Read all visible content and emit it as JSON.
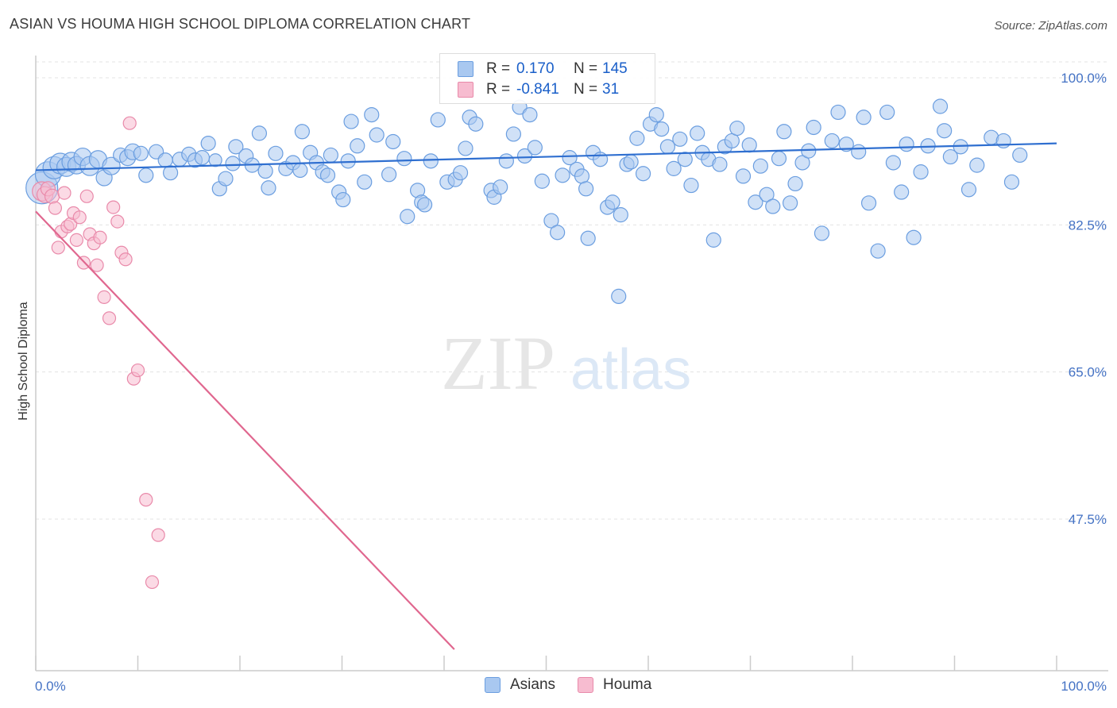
{
  "header": {
    "title": "ASIAN VS HOUMA HIGH SCHOOL DIPLOMA CORRELATION CHART",
    "source": "Source: ZipAtlas.com"
  },
  "watermark": {
    "zip": "ZIP",
    "atlas": "atlas"
  },
  "legend": {
    "rows": [
      {
        "r_label": "R =",
        "r_value": "0.170",
        "n_label": "N =",
        "n_value": "145",
        "color": "#a9c8f0",
        "border": "#6b9ee0"
      },
      {
        "r_label": "R =",
        "r_value": "-0.841",
        "n_label": "N =",
        "n_value": "31",
        "color": "#f7bcd0",
        "border": "#e98aaa"
      }
    ]
  },
  "bottom_legend": {
    "items": [
      {
        "label": "Asians",
        "color": "#a9c8f0",
        "border": "#6b9ee0"
      },
      {
        "label": "Houma",
        "color": "#f7bcd0",
        "border": "#e98aaa"
      }
    ]
  },
  "chart_data": {
    "type": "scatter",
    "title": "ASIAN VS HOUMA HIGH SCHOOL DIPLOMA CORRELATION CHART",
    "xlabel": "",
    "ylabel": "High School Diploma",
    "xlim": [
      0,
      100
    ],
    "ylim": [
      32,
      102
    ],
    "x_ticks": [
      "0.0%",
      "100.0%"
    ],
    "y_ticks": [
      {
        "value": 100.0,
        "label": "100.0%"
      },
      {
        "value": 82.5,
        "label": "82.5%"
      },
      {
        "value": 65.0,
        "label": "65.0%"
      },
      {
        "value": 47.5,
        "label": "47.5%"
      }
    ],
    "grid": true,
    "legend_position": "top-center",
    "series": [
      {
        "name": "Asians",
        "color": "#a9c8f0",
        "stroke": "#6b9ee0",
        "trend": {
          "x": [
            0,
            100
          ],
          "y": [
            89.0,
            92.2
          ],
          "color": "#2f6fd0"
        },
        "points": [
          [
            0.6,
            86.9,
            20
          ],
          [
            1.2,
            88.5,
            16
          ],
          [
            1.8,
            89.3,
            14
          ],
          [
            2.4,
            89.8,
            13
          ],
          [
            3.0,
            89.4,
            12
          ],
          [
            3.5,
            90.0,
            12
          ],
          [
            4.0,
            89.6,
            11
          ],
          [
            4.6,
            90.6,
            11
          ],
          [
            5.3,
            89.5,
            12
          ],
          [
            6.1,
            90.3,
            11
          ],
          [
            6.7,
            88.1,
            10
          ],
          [
            7.4,
            89.5,
            11
          ],
          [
            8.3,
            90.8,
            9
          ],
          [
            9.0,
            90.5,
            10
          ],
          [
            9.5,
            91.2,
            10
          ],
          [
            10.3,
            91.0,
            9
          ],
          [
            10.8,
            88.4,
            9
          ],
          [
            11.8,
            91.2,
            9
          ],
          [
            12.7,
            90.2,
            9
          ],
          [
            13.2,
            88.7,
            9
          ],
          [
            14.1,
            90.3,
            9
          ],
          [
            15.0,
            90.9,
            9
          ],
          [
            15.6,
            90.2,
            9
          ],
          [
            16.3,
            90.5,
            9
          ],
          [
            16.9,
            92.2,
            9
          ],
          [
            17.6,
            90.2,
            8
          ],
          [
            18.0,
            86.8,
            9
          ],
          [
            18.6,
            88.0,
            9
          ],
          [
            19.3,
            89.8,
            9
          ],
          [
            19.6,
            91.8,
            9
          ],
          [
            20.6,
            90.7,
            9
          ],
          [
            21.2,
            89.6,
            9
          ],
          [
            21.9,
            93.4,
            9
          ],
          [
            22.5,
            88.9,
            9
          ],
          [
            22.8,
            86.9,
            9
          ],
          [
            23.5,
            91.0,
            9
          ],
          [
            24.5,
            89.2,
            9
          ],
          [
            25.2,
            89.9,
            9
          ],
          [
            25.9,
            89.0,
            9
          ],
          [
            26.1,
            93.6,
            9
          ],
          [
            26.9,
            91.1,
            9
          ],
          [
            27.5,
            89.9,
            9
          ],
          [
            28.1,
            88.8,
            9
          ],
          [
            28.6,
            88.4,
            9
          ],
          [
            28.9,
            90.8,
            9
          ],
          [
            29.7,
            86.4,
            9
          ],
          [
            30.1,
            85.5,
            9
          ],
          [
            30.6,
            90.1,
            9
          ],
          [
            30.9,
            94.8,
            9
          ],
          [
            31.5,
            91.9,
            9
          ],
          [
            32.2,
            87.6,
            9
          ],
          [
            32.9,
            95.6,
            9
          ],
          [
            33.4,
            93.2,
            9
          ],
          [
            34.6,
            88.5,
            9
          ],
          [
            35.0,
            92.4,
            9
          ],
          [
            36.1,
            90.4,
            9
          ],
          [
            36.4,
            83.5,
            9
          ],
          [
            37.4,
            86.6,
            9
          ],
          [
            37.8,
            85.2,
            9
          ],
          [
            38.1,
            84.9,
            9
          ],
          [
            38.7,
            90.1,
            9
          ],
          [
            39.4,
            95.0,
            9
          ],
          [
            40.3,
            87.6,
            9
          ],
          [
            41.1,
            87.9,
            9
          ],
          [
            41.6,
            88.7,
            9
          ],
          [
            42.1,
            91.6,
            9
          ],
          [
            42.5,
            95.3,
            9
          ],
          [
            43.1,
            94.5,
            9
          ],
          [
            44.6,
            86.6,
            9
          ],
          [
            44.9,
            85.8,
            9
          ],
          [
            45.5,
            87.0,
            9
          ],
          [
            46.1,
            90.1,
            9
          ],
          [
            46.8,
            93.3,
            9
          ],
          [
            47.4,
            96.5,
            9
          ],
          [
            47.9,
            90.7,
            9
          ],
          [
            48.4,
            95.6,
            9
          ],
          [
            48.9,
            91.7,
            9
          ],
          [
            49.6,
            87.7,
            9
          ],
          [
            50.5,
            83.0,
            9
          ],
          [
            51.1,
            81.6,
            9
          ],
          [
            51.6,
            88.4,
            9
          ],
          [
            52.3,
            90.5,
            9
          ],
          [
            53.0,
            89.1,
            9
          ],
          [
            53.5,
            88.3,
            9
          ],
          [
            53.9,
            86.8,
            9
          ],
          [
            54.1,
            80.9,
            9
          ],
          [
            54.6,
            91.1,
            9
          ],
          [
            55.3,
            90.3,
            9
          ],
          [
            56.0,
            84.6,
            9
          ],
          [
            56.5,
            85.2,
            9
          ],
          [
            57.1,
            74.0,
            9
          ],
          [
            57.3,
            83.7,
            9
          ],
          [
            57.9,
            89.7,
            9
          ],
          [
            58.3,
            90.0,
            9
          ],
          [
            58.9,
            92.8,
            9
          ],
          [
            59.5,
            88.6,
            9
          ],
          [
            60.2,
            94.5,
            9
          ],
          [
            60.8,
            95.6,
            9
          ],
          [
            61.3,
            93.9,
            9
          ],
          [
            61.9,
            91.8,
            9
          ],
          [
            62.5,
            89.2,
            9
          ],
          [
            63.1,
            92.7,
            9
          ],
          [
            63.6,
            90.3,
            9
          ],
          [
            64.2,
            87.2,
            9
          ],
          [
            64.8,
            93.4,
            9
          ],
          [
            65.3,
            91.1,
            9
          ],
          [
            65.9,
            90.3,
            9
          ],
          [
            66.4,
            80.7,
            9
          ],
          [
            67.0,
            89.7,
            9
          ],
          [
            67.5,
            91.8,
            9
          ],
          [
            68.2,
            92.5,
            9
          ],
          [
            68.7,
            94.0,
            9
          ],
          [
            69.3,
            88.3,
            9
          ],
          [
            69.9,
            92.0,
            9
          ],
          [
            70.5,
            85.2,
            9
          ],
          [
            71.0,
            89.5,
            9
          ],
          [
            71.6,
            86.1,
            9
          ],
          [
            72.2,
            84.7,
            9
          ],
          [
            72.8,
            90.4,
            9
          ],
          [
            73.3,
            93.6,
            9
          ],
          [
            73.9,
            85.1,
            9
          ],
          [
            74.4,
            87.4,
            9
          ],
          [
            75.1,
            89.9,
            9
          ],
          [
            75.7,
            91.3,
            9
          ],
          [
            76.2,
            94.1,
            9
          ],
          [
            77.0,
            81.5,
            9
          ],
          [
            78.0,
            92.5,
            9
          ],
          [
            78.6,
            95.9,
            9
          ],
          [
            79.4,
            92.1,
            9
          ],
          [
            80.6,
            91.2,
            9
          ],
          [
            81.1,
            95.3,
            9
          ],
          [
            81.6,
            85.1,
            9
          ],
          [
            82.5,
            79.4,
            9
          ],
          [
            83.4,
            95.9,
            9
          ],
          [
            84.0,
            89.9,
            9
          ],
          [
            84.8,
            86.4,
            9
          ],
          [
            85.3,
            92.1,
            9
          ],
          [
            86.0,
            81.0,
            9
          ],
          [
            86.7,
            88.8,
            9
          ],
          [
            87.4,
            91.9,
            9
          ],
          [
            88.6,
            96.6,
            9
          ],
          [
            89.0,
            93.7,
            9
          ],
          [
            89.6,
            90.6,
            9
          ],
          [
            90.6,
            91.8,
            9
          ],
          [
            91.4,
            86.7,
            9
          ],
          [
            92.2,
            89.6,
            9
          ],
          [
            93.6,
            92.9,
            9
          ],
          [
            94.8,
            92.5,
            9
          ],
          [
            95.6,
            87.6,
            9
          ],
          [
            96.4,
            90.8,
            9
          ]
        ]
      },
      {
        "name": "Houma",
        "color": "#f7bcd0",
        "stroke": "#e98aaa",
        "trend": {
          "x": [
            0,
            41
          ],
          "y": [
            84.1,
            32.0
          ],
          "color": "#e0678f"
        },
        "points": [
          [
            0.6,
            86.5,
            12
          ],
          [
            0.9,
            86.1,
            10
          ],
          [
            1.2,
            86.8,
            9
          ],
          [
            1.6,
            85.9,
            9
          ],
          [
            1.9,
            84.5,
            8
          ],
          [
            2.2,
            79.8,
            8
          ],
          [
            2.5,
            81.7,
            8
          ],
          [
            2.8,
            86.3,
            8
          ],
          [
            3.1,
            82.3,
            8
          ],
          [
            3.4,
            82.6,
            8
          ],
          [
            3.7,
            83.9,
            8
          ],
          [
            4.0,
            80.7,
            8
          ],
          [
            4.3,
            83.4,
            8
          ],
          [
            4.7,
            78.0,
            8
          ],
          [
            5.0,
            85.9,
            8
          ],
          [
            5.3,
            81.4,
            8
          ],
          [
            5.7,
            80.3,
            8
          ],
          [
            6.0,
            77.7,
            8
          ],
          [
            6.3,
            81.0,
            8
          ],
          [
            6.7,
            73.9,
            8
          ],
          [
            7.2,
            71.4,
            8
          ],
          [
            7.6,
            84.6,
            8
          ],
          [
            8.0,
            82.9,
            8
          ],
          [
            8.4,
            79.2,
            8
          ],
          [
            8.8,
            78.4,
            8
          ],
          [
            9.2,
            94.6,
            8
          ],
          [
            9.6,
            64.2,
            8
          ],
          [
            10.0,
            65.2,
            8
          ],
          [
            10.8,
            49.8,
            8
          ],
          [
            11.4,
            40.0,
            8
          ],
          [
            12.0,
            45.6,
            8
          ]
        ]
      }
    ]
  }
}
